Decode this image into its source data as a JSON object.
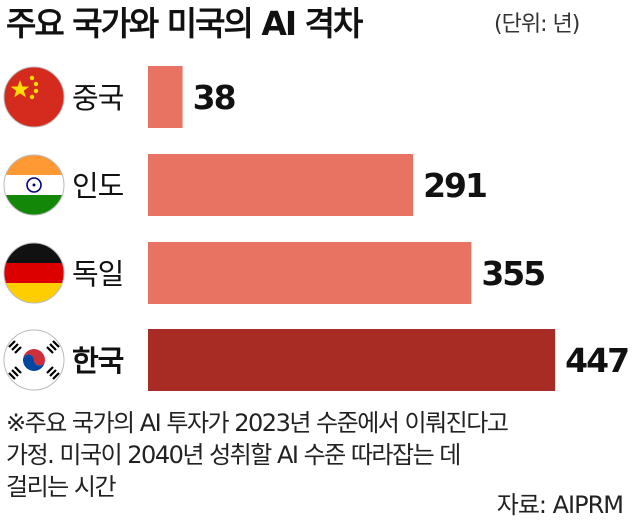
{
  "title": "주요 국가와 미국의 AI 격차",
  "unit": "(단위: 년)",
  "chart_data": {
    "type": "bar",
    "orientation": "horizontal",
    "categories": [
      "중국",
      "인도",
      "독일",
      "한국"
    ],
    "values": [
      38,
      291,
      355,
      447
    ],
    "flags": [
      "china-flag-icon",
      "india-flag-icon",
      "germany-flag-icon",
      "korea-flag-icon"
    ],
    "highlight_index": 3,
    "colors": {
      "bar": "#e97363",
      "highlight": "#a82b24"
    },
    "xlim": [
      0,
      460
    ]
  },
  "note_lines": [
    "※주요 국가의 AI 투자가 2023년 수준에서 이뤄진다고",
    "가정. 미국이 2040년 성취할 AI 수준 따라잡는 데",
    "걸리는 시간"
  ],
  "source": "자료: AIPRM"
}
